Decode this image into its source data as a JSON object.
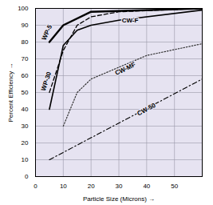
{
  "chart_data": {
    "type": "line",
    "xlabel": "Particle Size (Microns)",
    "ylabel": "Percent Efficiency",
    "xlim": [
      0,
      60
    ],
    "xticks": [
      0,
      10,
      20,
      30,
      40,
      50
    ],
    "ylim": [
      0,
      100
    ],
    "yticks": [
      0,
      10,
      20,
      30,
      40,
      50,
      60,
      70,
      80,
      90,
      100
    ],
    "grid": true,
    "series": [
      {
        "name": "WP-5",
        "color": "#000000",
        "line_style": "solid",
        "x": [
          5,
          10,
          20,
          60
        ],
        "values": [
          80,
          90,
          98,
          100
        ]
      },
      {
        "name": "WP-30",
        "color": "#000000",
        "line_style": "dashed",
        "x": [
          5,
          10,
          15,
          20,
          30,
          60
        ],
        "values": [
          50,
          75,
          90,
          95,
          98,
          100
        ]
      },
      {
        "name": "CW-F",
        "color": "#000000",
        "line_style": "solid",
        "x": [
          5,
          10,
          15,
          20,
          30,
          60
        ],
        "values": [
          40,
          78,
          87,
          90,
          93,
          99
        ]
      },
      {
        "name": "CW-MF",
        "color": "#333333",
        "line_style": "dotted",
        "x": [
          10,
          15,
          20,
          30,
          40,
          60
        ],
        "values": [
          30,
          50,
          58,
          65,
          72,
          79
        ]
      },
      {
        "name": "CW-50",
        "color": "#000000",
        "line_style": "dashdot",
        "x": [
          5,
          60
        ],
        "values": [
          10,
          58
        ]
      }
    ]
  }
}
